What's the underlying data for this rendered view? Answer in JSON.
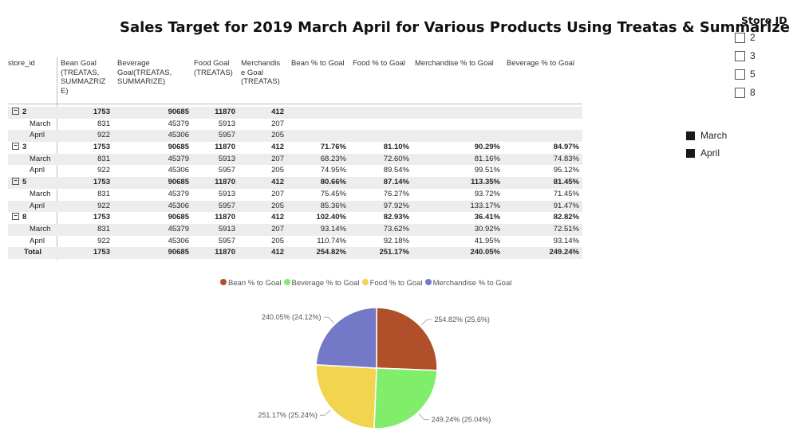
{
  "title": "Sales Target for 2019 March April for Various Products Using Treatas & Summarize",
  "matrix": {
    "headers": [
      {
        "lines": [
          "store_id"
        ]
      },
      {
        "lines": [
          "Bean Goal",
          "(TREATAS,",
          "SUMMAZRIZ",
          "E)"
        ]
      },
      {
        "lines": [
          "Beverage",
          "Goal(TREATAS,",
          "SUMMARIZE)"
        ]
      },
      {
        "lines": [
          "Food Goal",
          "(TREATAS)"
        ]
      },
      {
        "lines": [
          "Merchandis",
          "e Goal",
          "(TREATAS)"
        ]
      },
      {
        "lines": [
          "Bean % to Goal"
        ]
      },
      {
        "lines": [
          "Food % to Goal"
        ]
      },
      {
        "lines": [
          "Merchandise % to Goal"
        ]
      },
      {
        "lines": [
          "Beverage % to Goal"
        ]
      }
    ],
    "rows": [
      {
        "type": "group",
        "expand": "⊟",
        "label": "2",
        "cells": [
          "1753",
          "90685",
          "11870",
          "412",
          "",
          "",
          "",
          ""
        ]
      },
      {
        "type": "child",
        "label": "March",
        "cells": [
          "831",
          "45379",
          "5913",
          "207",
          "",
          "",
          "",
          ""
        ]
      },
      {
        "type": "child",
        "label": "April",
        "cells": [
          "922",
          "45306",
          "5957",
          "205",
          "",
          "",
          "",
          ""
        ]
      },
      {
        "type": "group",
        "expand": "⊟",
        "label": "3",
        "cells": [
          "1753",
          "90685",
          "11870",
          "412",
          "71.76%",
          "81.10%",
          "90.29%",
          "84.97%"
        ]
      },
      {
        "type": "child",
        "label": "March",
        "cells": [
          "831",
          "45379",
          "5913",
          "207",
          "68.23%",
          "72.60%",
          "81.16%",
          "74.83%"
        ]
      },
      {
        "type": "child",
        "label": "April",
        "cells": [
          "922",
          "45306",
          "5957",
          "205",
          "74.95%",
          "89.54%",
          "99.51%",
          "95.12%"
        ]
      },
      {
        "type": "group",
        "expand": "⊟",
        "label": "5",
        "cells": [
          "1753",
          "90685",
          "11870",
          "412",
          "80.66%",
          "87.14%",
          "113.35%",
          "81.45%"
        ]
      },
      {
        "type": "child",
        "label": "March",
        "cells": [
          "831",
          "45379",
          "5913",
          "207",
          "75.45%",
          "76.27%",
          "93.72%",
          "71.45%"
        ]
      },
      {
        "type": "child",
        "label": "April",
        "cells": [
          "922",
          "45306",
          "5957",
          "205",
          "85.36%",
          "97.92%",
          "133.17%",
          "91.47%"
        ]
      },
      {
        "type": "group",
        "expand": "⊟",
        "label": "8",
        "cells": [
          "1753",
          "90685",
          "11870",
          "412",
          "102.40%",
          "82.93%",
          "36.41%",
          "82.82%"
        ]
      },
      {
        "type": "child",
        "label": "March",
        "cells": [
          "831",
          "45379",
          "5913",
          "207",
          "93.14%",
          "73.62%",
          "30.92%",
          "72.51%"
        ]
      },
      {
        "type": "child",
        "label": "April",
        "cells": [
          "922",
          "45306",
          "5957",
          "205",
          "110.74%",
          "92.18%",
          "41.95%",
          "93.14%"
        ]
      },
      {
        "type": "total",
        "label": "Total",
        "cells": [
          "1753",
          "90685",
          "11870",
          "412",
          "254.82%",
          "251.17%",
          "240.05%",
          "249.24%"
        ]
      }
    ]
  },
  "slicer": {
    "title": "Store ID",
    "options": [
      {
        "label": "2",
        "checked": false
      },
      {
        "label": "3",
        "checked": false
      },
      {
        "label": "5",
        "checked": false
      },
      {
        "label": "8",
        "checked": false
      }
    ]
  },
  "month_legend": {
    "items": [
      {
        "label": "March",
        "color": "#1a1a1a"
      },
      {
        "label": "April",
        "color": "#1a1a1a"
      }
    ]
  },
  "chart_data": {
    "type": "pie",
    "legend_position": "top",
    "slices": [
      {
        "name": "Bean % to Goal",
        "value": 254.82,
        "label": "254.82% (25.6%)",
        "color": "#b0502a"
      },
      {
        "name": "Beverage % to Goal",
        "value": 249.24,
        "label": "249.24% (25.04%)",
        "color": "#80ed6b"
      },
      {
        "name": "Food % to Goal",
        "value": 251.17,
        "label": "251.17% (25.24%)",
        "color": "#f2d44e"
      },
      {
        "name": "Merchandise % to Goal",
        "value": 240.05,
        "label": "240.05% (24.12%)",
        "color": "#7479c7"
      }
    ]
  }
}
